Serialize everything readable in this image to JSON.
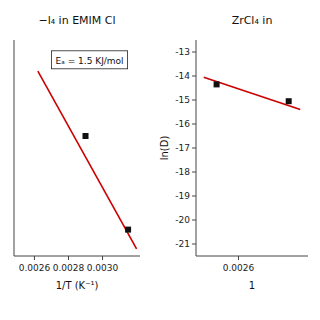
{
  "chart_data": [
    {
      "type": "scatter",
      "title": "−l₄ in EMIM Cl",
      "xlabel": "1/T (K⁻¹)",
      "annotation": "Eₐ = 1.5 KJ/mol",
      "series": [
        {
          "type": "line",
          "color": "#cc0000",
          "x": [
            0.00262,
            0.0032
          ],
          "values": [
            -13.8,
            -21.2
          ]
        },
        {
          "type": "scatter",
          "color": "#111111",
          "marker": "square",
          "x": [
            0.0029,
            0.00315
          ],
          "values": [
            -16.5,
            -20.4
          ]
        }
      ],
      "xlim": [
        0.00248,
        0.00322
      ],
      "ylim": [
        -21.5,
        -12.5
      ],
      "xticks": [
        0.0026,
        0.0028,
        {
          "value": 0.003,
          "label": "0.0030"
        }
      ],
      "tick_labels": "x"
    },
    {
      "type": "scatter",
      "title": "ZrCl₄ in",
      "xlabel": "1",
      "ylabel": "ln(D)",
      "series": [
        {
          "type": "line",
          "color": "#cc0000",
          "x": [
            0.002465,
            0.00284
          ],
          "values": [
            -14.05,
            -15.4
          ]
        },
        {
          "type": "scatter",
          "color": "#111111",
          "marker": "square",
          "x": [
            0.002515,
            0.002795
          ],
          "values": [
            -14.35,
            -15.05
          ]
        }
      ],
      "xlim": [
        0.002435,
        0.00287
      ],
      "ylim": [
        -21.5,
        -12.5
      ],
      "xticks": [
        0.0026
      ],
      "yticks": [
        -13,
        -14,
        -15,
        -16,
        -17,
        -18,
        -19,
        -20,
        -21
      ]
    }
  ]
}
